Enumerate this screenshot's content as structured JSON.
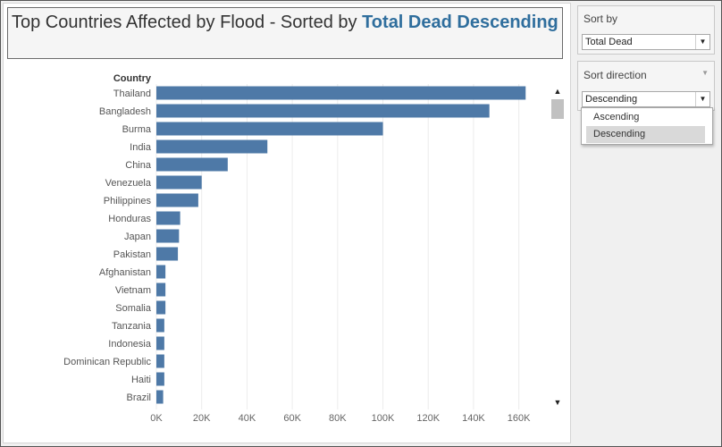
{
  "title": {
    "prefix": "Top Countries Affected by Flood - Sorted by ",
    "sort_field": "Total Dead",
    "sort_direction": "Descending"
  },
  "colors": {
    "bar": "#4e79a7",
    "accent": "#2f6e9d",
    "gridline": "#ececec"
  },
  "chart_data": {
    "type": "bar",
    "orientation": "horizontal",
    "yheader": "Country",
    "categories": [
      "Thailand",
      "Bangladesh",
      "Burma",
      "India",
      "China",
      "Venezuela",
      "Philippines",
      "Honduras",
      "Japan",
      "Pakistan",
      "Afghanistan",
      "Vietnam",
      "Somalia",
      "Tanzania",
      "Indonesia",
      "Dominican Republic",
      "Haiti",
      "Brazil"
    ],
    "values": [
      163000,
      147000,
      100000,
      49000,
      31500,
      20000,
      18500,
      10500,
      10000,
      9500,
      4000,
      4000,
      4000,
      3500,
      3500,
      3500,
      3500,
      3000
    ],
    "xlim": [
      0,
      170000
    ],
    "xticks": [
      0,
      20000,
      40000,
      60000,
      80000,
      100000,
      120000,
      140000,
      160000
    ],
    "xtick_labels": [
      "0K",
      "20K",
      "40K",
      "60K",
      "80K",
      "100K",
      "120K",
      "140K",
      "160K"
    ],
    "grid": true
  },
  "scrollbar": {
    "up_icon": "chevron-up-icon",
    "down_icon": "chevron-down-icon"
  },
  "sort_by": {
    "label": "Sort by",
    "value": "Total Dead"
  },
  "sort_direction": {
    "label": "Sort direction",
    "value": "Descending",
    "options": [
      "Ascending",
      "Descending"
    ],
    "highlighted": "Descending"
  }
}
